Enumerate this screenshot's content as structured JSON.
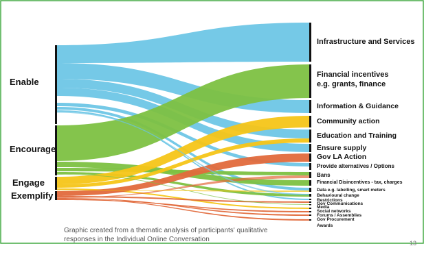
{
  "caption": "Graphic created from a thematic analysis of participants' qualitative responses in the Individual Online Conversation",
  "page_number": "13",
  "colors": {
    "frame": "#44aa44",
    "enable": "#6ec6e6",
    "encourage": "#7dc142",
    "engage": "#f5c518",
    "exemplify": "#e26a3c",
    "node": "#111111"
  },
  "sources": [
    {
      "id": "enable",
      "label": "Enable"
    },
    {
      "id": "encourage",
      "label": "Encourage"
    },
    {
      "id": "engage",
      "label": "Engage"
    },
    {
      "id": "exemplify",
      "label": "Exemplify"
    }
  ],
  "targets": [
    {
      "id": "infra",
      "label": "Infrastructure and Services"
    },
    {
      "id": "fin",
      "label": "Financial incentives\ne.g. grants, finance"
    },
    {
      "id": "info",
      "label": "Information & Guidance"
    },
    {
      "id": "comm",
      "label": "Community action"
    },
    {
      "id": "edu",
      "label": "Education and Training"
    },
    {
      "id": "supply",
      "label": "Ensure supply"
    },
    {
      "id": "gov",
      "label": "Gov LA Action"
    },
    {
      "id": "alt",
      "label": "Provide alternatives / Options"
    },
    {
      "id": "bans",
      "label": "Bans"
    },
    {
      "id": "disinc",
      "label": "Financial Disincentives - tax, charges"
    },
    {
      "id": "data",
      "label": "Data e.g. labelling, smart meters"
    },
    {
      "id": "behav",
      "label": "Behavioural change"
    },
    {
      "id": "restr",
      "label": "Restrictions"
    },
    {
      "id": "govcomm",
      "label": "Gov Communications"
    },
    {
      "id": "media",
      "label": "Media"
    },
    {
      "id": "social",
      "label": "Social networks"
    },
    {
      "id": "forums",
      "label": "Forums / Assemblies"
    },
    {
      "id": "proc",
      "label": "Gov Procurement"
    },
    {
      "id": "awards",
      "label": "Awards"
    }
  ]
}
